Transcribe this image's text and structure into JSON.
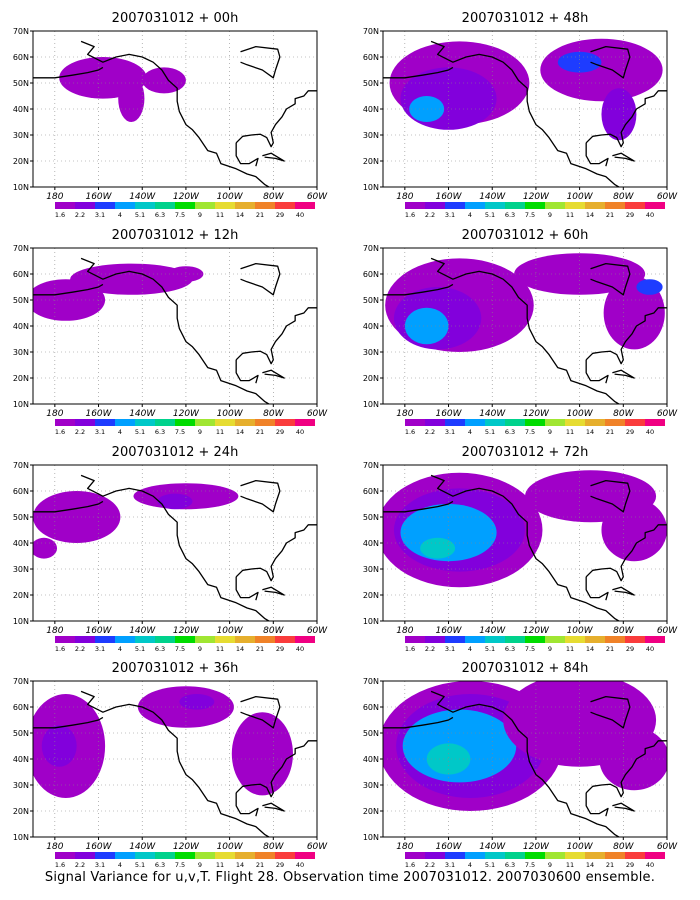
{
  "footer_caption": "Signal Variance for u,v,T. Flight 28. Observation time 2007031012. 2007030600 ensemble.",
  "colorbar": {
    "labels": [
      "1.6",
      "2.2",
      "3.1",
      "4",
      "5.1",
      "6.3",
      "7.5",
      "9",
      "11",
      "14",
      "21",
      "29",
      "40"
    ],
    "colors": [
      "#a000c8",
      "#8200dc",
      "#1e3cff",
      "#00a0ff",
      "#00c8c8",
      "#00d28c",
      "#00dc00",
      "#a0e632",
      "#e6dc32",
      "#e6af2d",
      "#f08228",
      "#fa3c3c",
      "#f00082"
    ]
  },
  "axes": {
    "x_ticks": [
      "180",
      "160W",
      "140W",
      "120W",
      "100W",
      "80W",
      "60W"
    ],
    "y_ticks": [
      "10N",
      "20N",
      "30N",
      "40N",
      "50N",
      "60N",
      "70N"
    ],
    "lon_range": [
      -190,
      -60
    ],
    "lat_range": [
      10,
      70
    ]
  },
  "chart_data": [
    {
      "type": "heatmap",
      "title": "2007031012 + 00h",
      "xlim": [
        -190,
        -60
      ],
      "ylim": [
        10,
        70
      ],
      "field": [
        {
          "lon": -158,
          "lat": 52,
          "rx": 20,
          "ry": 8,
          "level": 0
        },
        {
          "lon": -145,
          "lat": 44,
          "rx": 6,
          "ry": 9,
          "level": 0
        },
        {
          "lon": -130,
          "lat": 51,
          "rx": 10,
          "ry": 5,
          "level": 0
        }
      ]
    },
    {
      "type": "heatmap",
      "title": "2007031012 + 48h",
      "xlim": [
        -190,
        -60
      ],
      "ylim": [
        10,
        70
      ],
      "field": [
        {
          "lon": -155,
          "lat": 50,
          "rx": 32,
          "ry": 16,
          "level": 0
        },
        {
          "lon": -160,
          "lat": 44,
          "rx": 22,
          "ry": 12,
          "level": 1
        },
        {
          "lon": -170,
          "lat": 40,
          "rx": 8,
          "ry": 5,
          "level": 3
        },
        {
          "lon": -90,
          "lat": 55,
          "rx": 28,
          "ry": 12,
          "level": 0
        },
        {
          "lon": -82,
          "lat": 38,
          "rx": 8,
          "ry": 10,
          "level": 1
        },
        {
          "lon": -100,
          "lat": 58,
          "rx": 10,
          "ry": 4,
          "level": 2
        }
      ]
    },
    {
      "type": "heatmap",
      "title": "2007031012 + 12h",
      "xlim": [
        -190,
        -60
      ],
      "ylim": [
        10,
        70
      ],
      "field": [
        {
          "lon": -175,
          "lat": 50,
          "rx": 18,
          "ry": 8,
          "level": 0
        },
        {
          "lon": -145,
          "lat": 58,
          "rx": 28,
          "ry": 6,
          "level": 0
        },
        {
          "lon": -120,
          "lat": 60,
          "rx": 8,
          "ry": 3,
          "level": 0
        }
      ]
    },
    {
      "type": "heatmap",
      "title": "2007031012 + 60h",
      "xlim": [
        -190,
        -60
      ],
      "ylim": [
        10,
        70
      ],
      "field": [
        {
          "lon": -155,
          "lat": 48,
          "rx": 34,
          "ry": 18,
          "level": 0
        },
        {
          "lon": -165,
          "lat": 43,
          "rx": 20,
          "ry": 12,
          "level": 1
        },
        {
          "lon": -170,
          "lat": 40,
          "rx": 10,
          "ry": 7,
          "level": 3
        },
        {
          "lon": -100,
          "lat": 60,
          "rx": 30,
          "ry": 8,
          "level": 0
        },
        {
          "lon": -75,
          "lat": 45,
          "rx": 14,
          "ry": 14,
          "level": 0
        },
        {
          "lon": -68,
          "lat": 55,
          "rx": 6,
          "ry": 3,
          "level": 2
        }
      ]
    },
    {
      "type": "heatmap",
      "title": "2007031012 + 24h",
      "xlim": [
        -190,
        -60
      ],
      "ylim": [
        10,
        70
      ],
      "field": [
        {
          "lon": -170,
          "lat": 50,
          "rx": 20,
          "ry": 10,
          "level": 0
        },
        {
          "lon": -185,
          "lat": 38,
          "rx": 6,
          "ry": 4,
          "level": 0
        },
        {
          "lon": -120,
          "lat": 58,
          "rx": 24,
          "ry": 5,
          "level": 0
        },
        {
          "lon": -125,
          "lat": 56,
          "rx": 8,
          "ry": 3,
          "level": 1
        }
      ]
    },
    {
      "type": "heatmap",
      "title": "2007031012 + 72h",
      "xlim": [
        -190,
        -60
      ],
      "ylim": [
        10,
        70
      ],
      "field": [
        {
          "lon": -155,
          "lat": 45,
          "rx": 38,
          "ry": 22,
          "level": 0
        },
        {
          "lon": -155,
          "lat": 45,
          "rx": 30,
          "ry": 16,
          "level": 1
        },
        {
          "lon": -160,
          "lat": 44,
          "rx": 22,
          "ry": 11,
          "level": 3
        },
        {
          "lon": -165,
          "lat": 38,
          "rx": 8,
          "ry": 4,
          "level": 4
        },
        {
          "lon": -95,
          "lat": 58,
          "rx": 30,
          "ry": 10,
          "level": 0
        },
        {
          "lon": -75,
          "lat": 45,
          "rx": 15,
          "ry": 12,
          "level": 0
        }
      ]
    },
    {
      "type": "heatmap",
      "title": "2007031012 + 36h",
      "xlim": [
        -190,
        -60
      ],
      "ylim": [
        10,
        70
      ],
      "field": [
        {
          "lon": -175,
          "lat": 45,
          "rx": 18,
          "ry": 20,
          "level": 0
        },
        {
          "lon": -178,
          "lat": 45,
          "rx": 8,
          "ry": 8,
          "level": 1
        },
        {
          "lon": -120,
          "lat": 60,
          "rx": 22,
          "ry": 8,
          "level": 0
        },
        {
          "lon": -115,
          "lat": 62,
          "rx": 8,
          "ry": 3,
          "level": 1
        },
        {
          "lon": -85,
          "lat": 42,
          "rx": 14,
          "ry": 16,
          "level": 0
        }
      ]
    },
    {
      "type": "heatmap",
      "title": "2007031012 + 84h",
      "xlim": [
        -190,
        -60
      ],
      "ylim": [
        10,
        70
      ],
      "field": [
        {
          "lon": -150,
          "lat": 45,
          "rx": 42,
          "ry": 25,
          "level": 0
        },
        {
          "lon": -150,
          "lat": 45,
          "rx": 34,
          "ry": 20,
          "level": 1
        },
        {
          "lon": -155,
          "lat": 45,
          "rx": 26,
          "ry": 14,
          "level": 3
        },
        {
          "lon": -160,
          "lat": 40,
          "rx": 10,
          "ry": 6,
          "level": 4
        },
        {
          "lon": -100,
          "lat": 55,
          "rx": 35,
          "ry": 18,
          "level": 0
        },
        {
          "lon": -75,
          "lat": 40,
          "rx": 16,
          "ry": 12,
          "level": 0
        }
      ]
    }
  ]
}
